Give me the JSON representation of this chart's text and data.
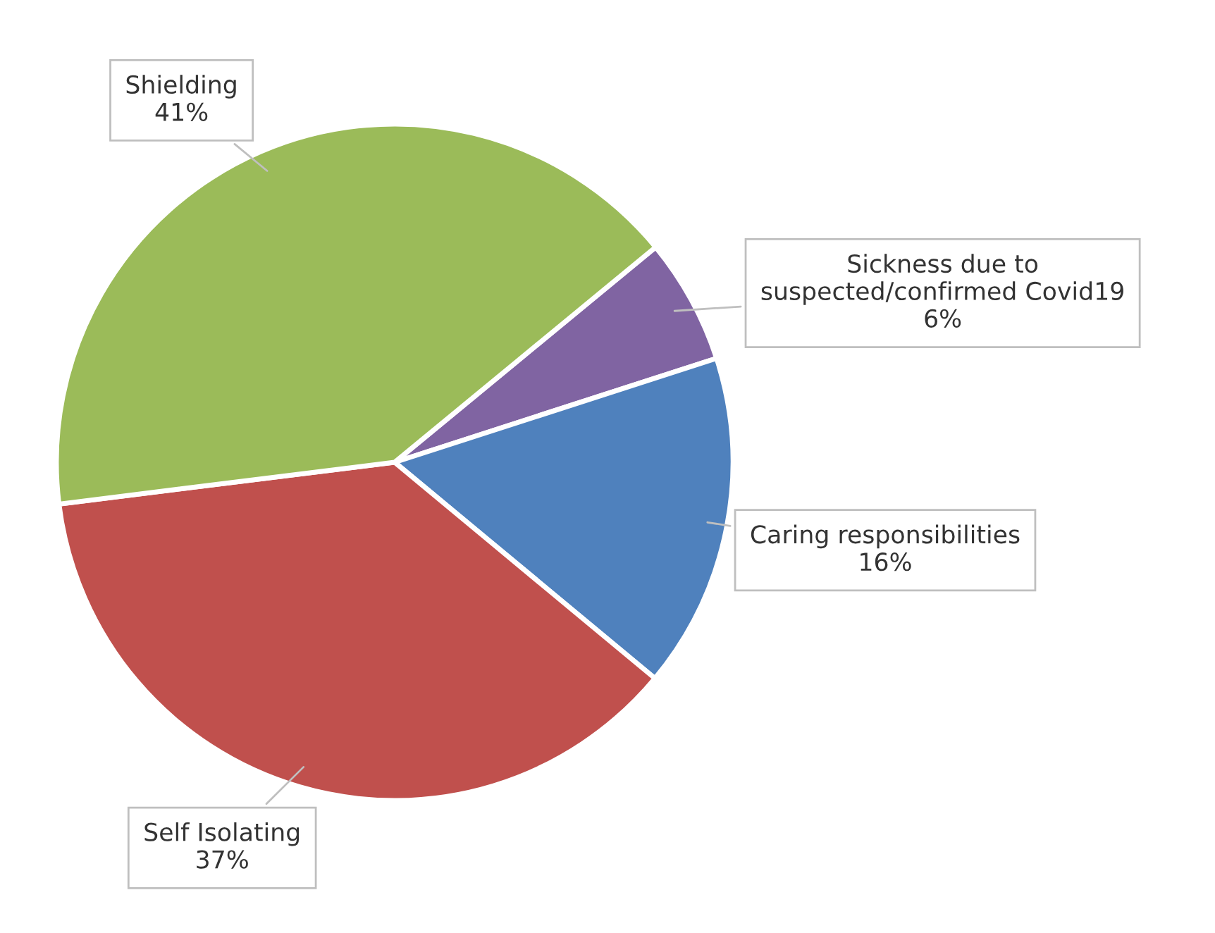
{
  "chart_data": {
    "type": "pie",
    "categories": [
      "Sickness due to suspected/confirmed Covid19",
      "Caring responsibilities",
      "Self Isolating",
      "Shielding"
    ],
    "values": [
      6,
      16,
      37,
      41
    ],
    "value_labels": [
      "6%",
      "16%",
      "37%",
      "41%"
    ],
    "colors": [
      "#8064a2",
      "#4f81bd",
      "#c0504d",
      "#9bbb59"
    ],
    "legend": false
  }
}
